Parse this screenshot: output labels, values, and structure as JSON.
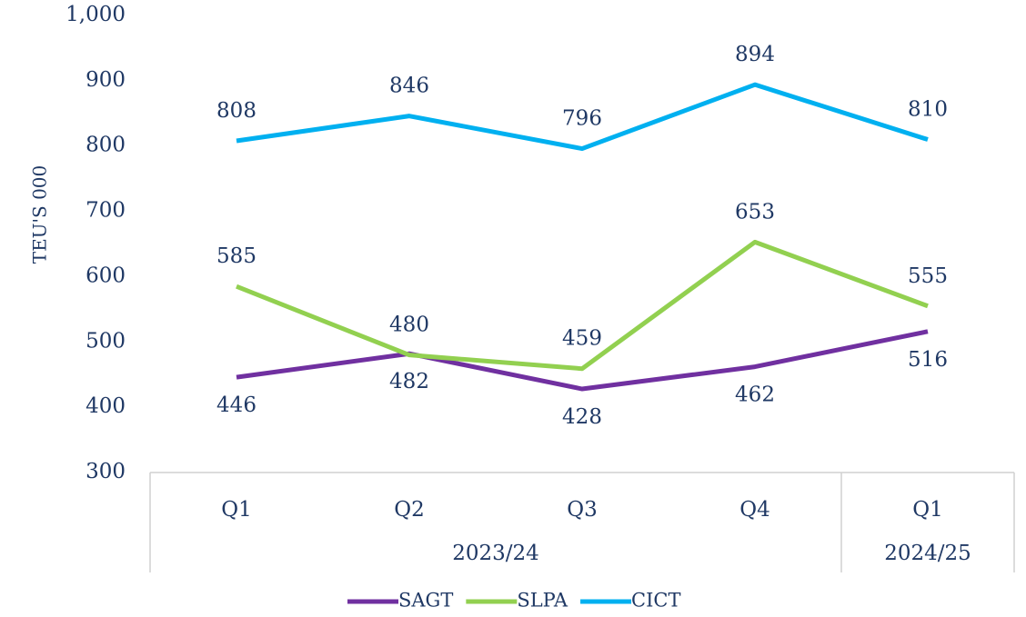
{
  "chart_data": {
    "type": "line",
    "y_label": "TEU'S 000",
    "categories": [
      "Q1",
      "Q2",
      "Q3",
      "Q4",
      "Q1"
    ],
    "groups": [
      {
        "label": "2023/24",
        "span": 4
      },
      {
        "label": "2024/25",
        "span": 1
      }
    ],
    "series": [
      {
        "name": "SAGT",
        "color": "#7030a0",
        "values": [
          446,
          482,
          428,
          462,
          516
        ],
        "label_position": "below"
      },
      {
        "name": "SLPA",
        "color": "#92d050",
        "values": [
          585,
          480,
          459,
          653,
          555
        ],
        "label_position": "above"
      },
      {
        "name": "CICT",
        "color": "#00b0f0",
        "values": [
          808,
          846,
          796,
          894,
          810
        ],
        "label_position": "above"
      }
    ],
    "ylim": [
      300,
      1000
    ],
    "yticks": [
      300,
      400,
      500,
      600,
      700,
      800,
      900,
      {
        "value": 1000,
        "label": "1,000"
      }
    ],
    "grid": false,
    "legend": "bottom"
  }
}
